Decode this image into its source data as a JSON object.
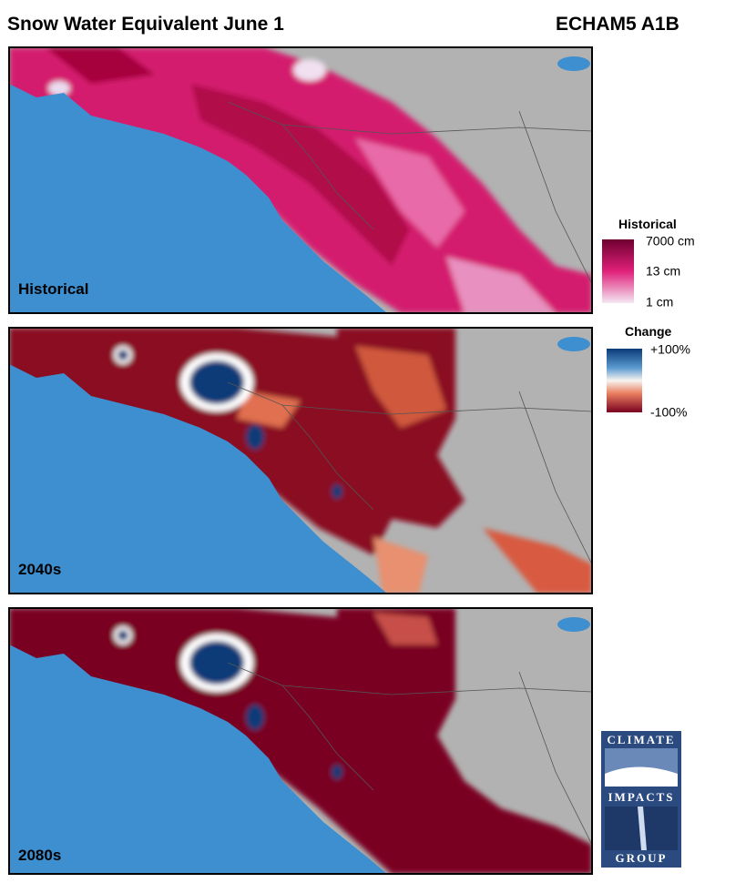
{
  "header": {
    "title": "Snow Water Equivalent June 1",
    "scenario": "ECHAM5 A1B"
  },
  "panels": [
    {
      "label": "Historical"
    },
    {
      "label": "2040s"
    },
    {
      "label": "2080s"
    }
  ],
  "legends": [
    {
      "title": "Historical",
      "labels": [
        "7000 cm",
        "13 cm",
        "1 cm"
      ]
    },
    {
      "title": "Change",
      "labels": [
        "+100%",
        "-100%"
      ]
    }
  ],
  "logo": {
    "lines": [
      "CLIMATE",
      "IMPACTS",
      "GROUP"
    ]
  }
}
